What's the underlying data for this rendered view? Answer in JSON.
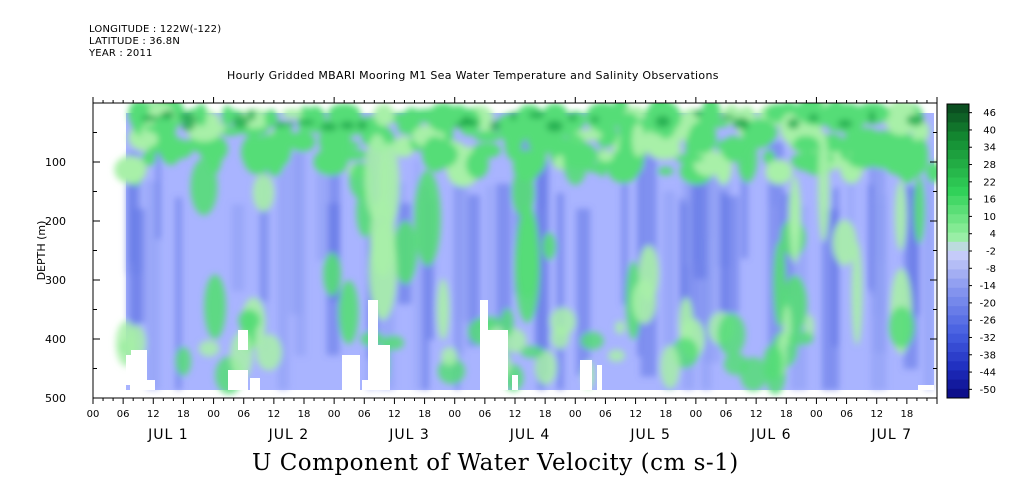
{
  "header": {
    "longitude": "LONGITUDE : 122W(-122)",
    "latitude": "LATITUDE : 36.8N",
    "year": "YEAR : 2011"
  },
  "chart_data": {
    "type": "heatmap",
    "title": "Hourly Gridded MBARI Mooring M1 Sea Water Temperature and Salinity Observations",
    "bottom_title": "U Component of Water Velocity (cm s-1)",
    "ylabel": "DEPTH (m)",
    "ylim": [
      500,
      0
    ],
    "y_ticks": [
      100,
      200,
      300,
      400,
      500
    ],
    "x_hour_ticks": [
      "00",
      "06",
      "12",
      "18",
      "00",
      "06",
      "12",
      "18",
      "00",
      "06",
      "12",
      "18",
      "00",
      "06",
      "12",
      "18",
      "00",
      "06",
      "12",
      "18",
      "00",
      "06",
      "12",
      "18",
      "00",
      "06",
      "12",
      "18"
    ],
    "x_day_labels": [
      "JUL 1",
      "JUL 2",
      "JUL 3",
      "JUL 4",
      "JUL 5",
      "JUL 6",
      "JUL 7"
    ],
    "colorbar": {
      "labels": [
        "46",
        "40",
        "34",
        "28",
        "22",
        "16",
        "10",
        "4",
        "-2",
        "-8",
        "-14",
        "-20",
        "-26",
        "-32",
        "-38",
        "-44",
        "-50"
      ],
      "min": -50,
      "max": 46
    },
    "colors": {
      "blue": "#8c9cf2",
      "light_blue": "#a9b4ff",
      "green": "#55dd77",
      "light_green": "#a8f0a8",
      "dark_green": "#1aa84a",
      "deep_blue": "#5f73e4"
    }
  }
}
